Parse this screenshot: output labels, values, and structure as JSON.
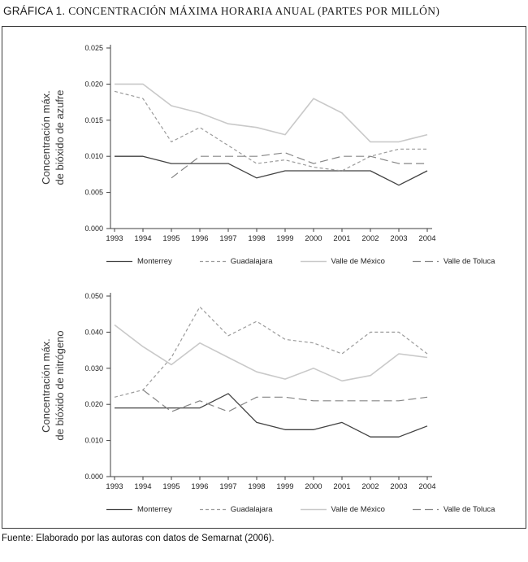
{
  "title": {
    "prefix": "GRÁFICA 1.",
    "rest": "CONCENTRACIÓN MÁXIMA HORARIA ANUAL (PARTES POR MILLÓN)"
  },
  "footer": "Fuente: Elaborado por las autoras con datos de Semarnat (2006).",
  "series_styles": {
    "monterrey": {
      "color": "#424242",
      "width": 1.3,
      "dash": null
    },
    "guadalajara": {
      "color": "#9b9b9b",
      "width": 1.2,
      "dash": "4 3"
    },
    "valle_mexico": {
      "color": "#c9c9c9",
      "width": 1.6,
      "dash": null
    },
    "valle_toluca": {
      "color": "#858585",
      "width": 1.2,
      "dash": "10 5"
    }
  },
  "axis_color": "#3f3f3f",
  "chart_data": [
    {
      "type": "line",
      "title": "",
      "xlabel": "",
      "ylabel": "Concentración máx.\nde bióxido de azufre",
      "x": [
        "1993",
        "1994",
        "1995",
        "1996",
        "1997",
        "1998",
        "1999",
        "2000",
        "2001",
        "2002",
        "2003",
        "2004"
      ],
      "ylim": [
        0,
        0.025
      ],
      "ytick_labels": [
        "0.000",
        "0.005",
        "0.010",
        "0.015",
        "0.020",
        "0.025"
      ],
      "grid": false,
      "legend_position": "bottom",
      "series": [
        {
          "name": "Monterrey",
          "style": "monterrey",
          "values": [
            0.01,
            0.01,
            0.009,
            0.009,
            0.009,
            0.007,
            0.008,
            0.008,
            0.008,
            0.008,
            0.006,
            0.008
          ]
        },
        {
          "name": "Guadalajara",
          "style": "guadalajara",
          "values": [
            0.019,
            0.018,
            0.012,
            0.014,
            0.0115,
            0.009,
            0.0095,
            0.0085,
            0.008,
            0.01,
            0.011,
            0.011
          ]
        },
        {
          "name": "Valle de México",
          "style": "valle_mexico",
          "values": [
            0.02,
            0.02,
            0.017,
            0.016,
            0.0145,
            0.014,
            0.013,
            0.018,
            0.016,
            0.012,
            0.012,
            0.013
          ]
        },
        {
          "name": "Valle de Toluca",
          "style": "valle_toluca",
          "values": [
            null,
            null,
            0.007,
            0.01,
            0.01,
            0.01,
            0.0105,
            0.009,
            0.01,
            0.01,
            0.009,
            0.009
          ]
        }
      ]
    },
    {
      "type": "line",
      "title": "",
      "xlabel": "",
      "ylabel": "Concentración máx.\nde bióxido de nitrógeno",
      "x": [
        "1993",
        "1994",
        "1995",
        "1996",
        "1997",
        "1998",
        "1999",
        "2000",
        "2001",
        "2002",
        "2003",
        "2004"
      ],
      "ylim": [
        0,
        0.05
      ],
      "ytick_labels": [
        "0.000",
        "0.010",
        "0.020",
        "0.030",
        "0.040",
        "0.050"
      ],
      "grid": false,
      "legend_position": "bottom",
      "series": [
        {
          "name": "Monterrey",
          "style": "monterrey",
          "values": [
            0.019,
            0.019,
            0.019,
            0.019,
            0.023,
            0.015,
            0.013,
            0.013,
            0.015,
            0.011,
            0.011,
            0.014
          ]
        },
        {
          "name": "Guadalajara",
          "style": "guadalajara",
          "values": [
            0.022,
            0.024,
            0.033,
            0.047,
            0.039,
            0.043,
            0.038,
            0.037,
            0.034,
            0.04,
            0.04,
            0.034
          ]
        },
        {
          "name": "Valle de México",
          "style": "valle_mexico",
          "values": [
            0.042,
            0.036,
            0.031,
            0.037,
            0.033,
            0.029,
            0.027,
            0.03,
            0.0265,
            0.028,
            0.034,
            0.033
          ]
        },
        {
          "name": "Valle de Toluca",
          "style": "valle_toluca",
          "values": [
            null,
            0.024,
            0.018,
            0.021,
            0.018,
            0.022,
            0.022,
            0.021,
            0.021,
            0.021,
            0.021,
            0.022
          ]
        }
      ]
    }
  ]
}
